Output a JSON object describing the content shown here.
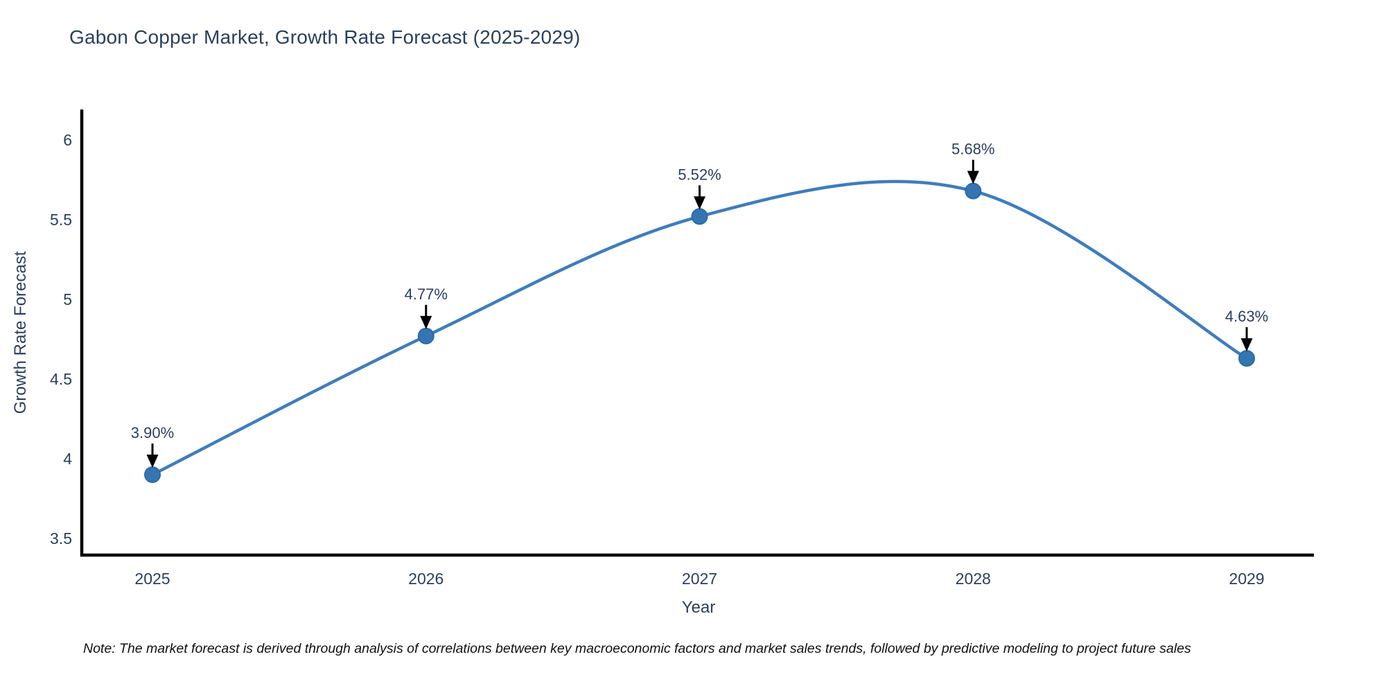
{
  "chart": {
    "title": "Gabon Copper Market, Growth Rate Forecast (2025-2029)",
    "xlabel": "Year",
    "ylabel": "Growth Rate Forecast",
    "note": "Note: The market forecast is derived through analysis of correlations between key macroeconomic factors and market sales trends, followed by predictive modeling to project future sales"
  },
  "chart_data": {
    "type": "line",
    "line_shape": "spline",
    "title": "Gabon Copper Market, Growth Rate Forecast (2025-2029)",
    "xlabel": "Year",
    "ylabel": "Growth Rate Forecast",
    "x": [
      2025,
      2026,
      2027,
      2028,
      2029
    ],
    "xticklabels": [
      "2025",
      "2026",
      "2027",
      "2028",
      "2029"
    ],
    "series": [
      {
        "name": "Growth Rate Forecast",
        "values": [
          3.9,
          4.77,
          5.52,
          5.68,
          4.63
        ],
        "point_labels": [
          "3.90%",
          "4.77%",
          "5.52%",
          "5.68%",
          "4.63%"
        ]
      }
    ],
    "yticks": [
      3.5,
      4,
      4.5,
      5,
      5.5,
      6
    ],
    "yticklabels": [
      "3.5",
      "4",
      "4.5",
      "5",
      "5.5",
      "6"
    ],
    "ylim": [
      3.39,
      6.19
    ],
    "grid": false,
    "legend": "none",
    "annotations_have_arrows": true,
    "colors": {
      "line": "#3E7DBC",
      "marker": "#3575B2",
      "marker_edge": "#2D6AA6",
      "axis": "#000000",
      "text": "#2a3f5f",
      "annotation_arrow": "#000000",
      "background": "#ffffff"
    }
  }
}
